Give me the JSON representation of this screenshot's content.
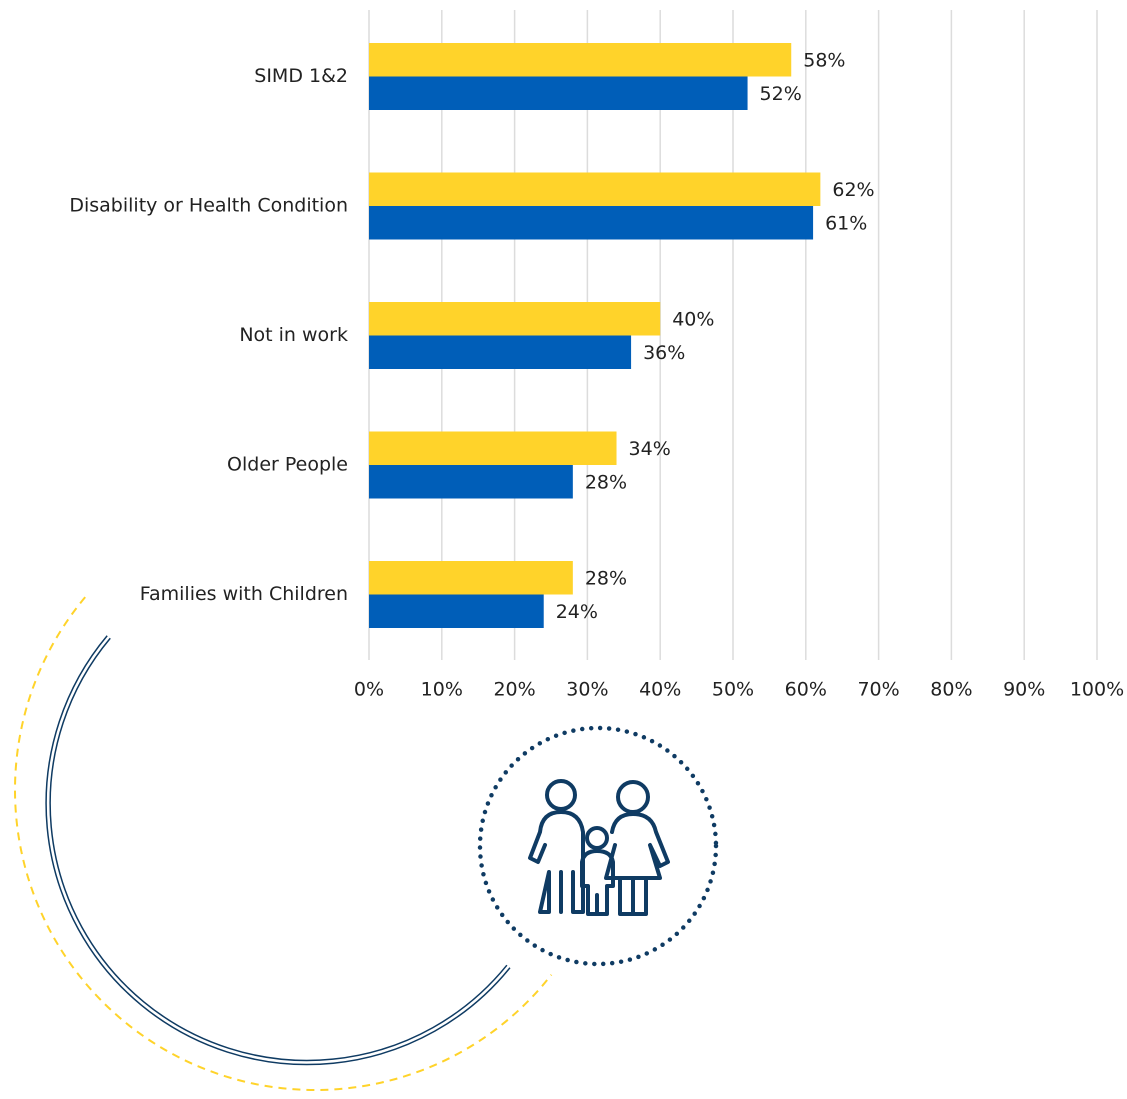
{
  "chart_data": {
    "type": "bar",
    "orientation": "horizontal",
    "categories": [
      "SIMD 1&2",
      "Disability or Health Condition",
      "Not in work",
      "Older People",
      "Families with Children"
    ],
    "series": [
      {
        "color": "#ffd32a",
        "values": [
          58,
          62,
          40,
          34,
          28
        ],
        "value_labels": [
          "58%",
          "62%",
          "40%",
          "34%",
          "28%"
        ]
      },
      {
        "color": "#005eb8",
        "values": [
          52,
          61,
          36,
          28,
          24
        ],
        "value_labels": [
          "52%",
          "61%",
          "36%",
          "28%",
          "24%"
        ]
      }
    ],
    "xlim": [
      0,
      100
    ],
    "xticks": [
      {
        "value": 0,
        "label": "0%"
      },
      {
        "value": 10,
        "label": "10%"
      },
      {
        "value": 20,
        "label": "20%"
      },
      {
        "value": 30,
        "label": "30%"
      },
      {
        "value": 40,
        "label": "40%"
      },
      {
        "value": 50,
        "label": "50%"
      },
      {
        "value": 60,
        "label": "60%"
      },
      {
        "value": 70,
        "label": "70%"
      },
      {
        "value": 80,
        "label": "80%"
      },
      {
        "value": 90,
        "label": "90%"
      },
      {
        "value": 100,
        "label": "100%"
      }
    ],
    "grid": true
  }
}
